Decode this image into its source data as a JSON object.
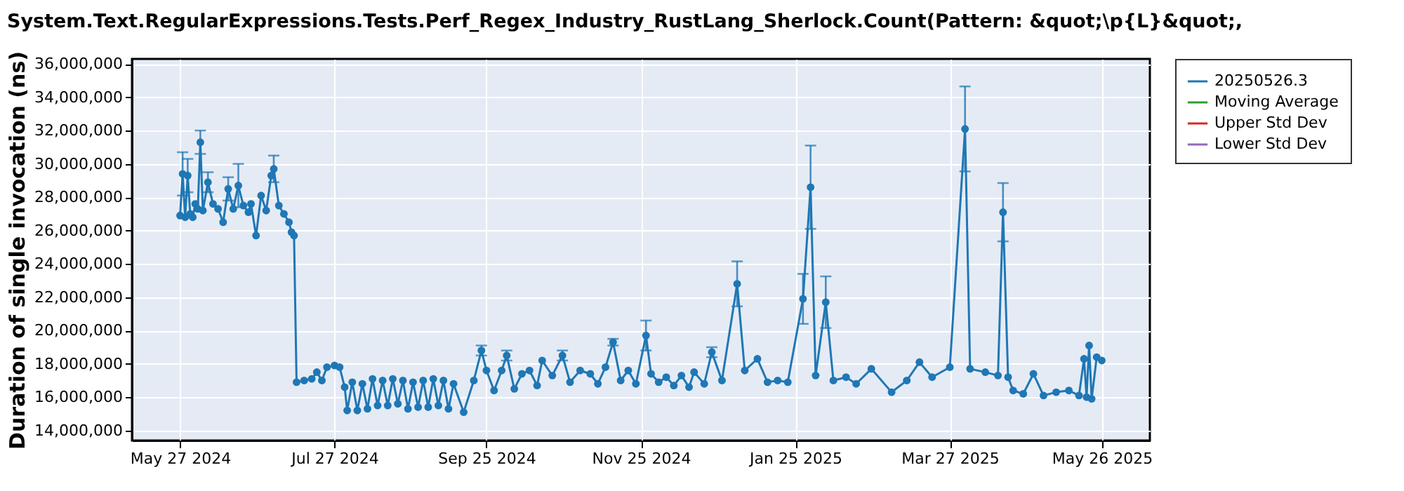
{
  "chart_data": {
    "type": "line",
    "title": "System.Text.RegularExpressions.Tests.Perf_Regex_Industry_RustLang_Sherlock.Count(Pattern: &quot;\\p{L}&quot;,",
    "ylabel": "Duration of single invocation (ns)",
    "xlim": [
      "2024-05-08",
      "2025-06-14"
    ],
    "ylim": [
      13400000,
      36300000
    ],
    "xticks": [
      {
        "value": "2024-05-27",
        "label": "May 27 2024"
      },
      {
        "value": "2024-07-27",
        "label": "Jul 27 2024"
      },
      {
        "value": "2024-09-25",
        "label": "Sep 25 2024"
      },
      {
        "value": "2024-11-25",
        "label": "Nov 25 2024"
      },
      {
        "value": "2025-01-25",
        "label": "Jan 25 2025"
      },
      {
        "value": "2025-03-27",
        "label": "Mar 27 2025"
      },
      {
        "value": "2025-05-26",
        "label": "May 26 2025"
      }
    ],
    "yticks": [
      {
        "value": 14000000,
        "label": "14,000,000"
      },
      {
        "value": 16000000,
        "label": "16,000,000"
      },
      {
        "value": 18000000,
        "label": "18,000,000"
      },
      {
        "value": 20000000,
        "label": "20,000,000"
      },
      {
        "value": 22000000,
        "label": "22,000,000"
      },
      {
        "value": 24000000,
        "label": "24,000,000"
      },
      {
        "value": 26000000,
        "label": "26,000,000"
      },
      {
        "value": 28000000,
        "label": "28,000,000"
      },
      {
        "value": 30000000,
        "label": "30,000,000"
      },
      {
        "value": 32000000,
        "label": "32,000,000"
      },
      {
        "value": 34000000,
        "label": "34,000,000"
      },
      {
        "value": 36000000,
        "label": "36,000,000"
      }
    ],
    "grid": true,
    "legend": "right",
    "marker": "circle",
    "line_style": "solid",
    "x": [
      "2024-05-27",
      "2024-05-28",
      "2024-05-29",
      "2024-05-30",
      "2024-05-31",
      "2024-06-01",
      "2024-06-02",
      "2024-06-03",
      "2024-06-04",
      "2024-06-05",
      "2024-06-07",
      "2024-06-09",
      "2024-06-11",
      "2024-06-13",
      "2024-06-15",
      "2024-06-17",
      "2024-06-19",
      "2024-06-21",
      "2024-06-23",
      "2024-06-24",
      "2024-06-26",
      "2024-06-28",
      "2024-06-30",
      "2024-07-02",
      "2024-07-03",
      "2024-07-05",
      "2024-07-07",
      "2024-07-09",
      "2024-07-10",
      "2024-07-11",
      "2024-07-12",
      "2024-07-15",
      "2024-07-18",
      "2024-07-20",
      "2024-07-22",
      "2024-07-24",
      "2024-07-27",
      "2024-07-29",
      "2024-07-31",
      "2024-08-01",
      "2024-08-03",
      "2024-08-05",
      "2024-08-07",
      "2024-08-09",
      "2024-08-11",
      "2024-08-13",
      "2024-08-15",
      "2024-08-17",
      "2024-08-19",
      "2024-08-21",
      "2024-08-23",
      "2024-08-25",
      "2024-08-27",
      "2024-08-29",
      "2024-08-31",
      "2024-09-02",
      "2024-09-04",
      "2024-09-06",
      "2024-09-08",
      "2024-09-10",
      "2024-09-12",
      "2024-09-16",
      "2024-09-20",
      "2024-09-23",
      "2024-09-25",
      "2024-09-28",
      "2024-10-01",
      "2024-10-03",
      "2024-10-06",
      "2024-10-09",
      "2024-10-12",
      "2024-10-15",
      "2024-10-17",
      "2024-10-21",
      "2024-10-25",
      "2024-10-28",
      "2024-11-01",
      "2024-11-05",
      "2024-11-08",
      "2024-11-11",
      "2024-11-14",
      "2024-11-17",
      "2024-11-20",
      "2024-11-23",
      "2024-11-27",
      "2024-11-29",
      "2024-12-02",
      "2024-12-05",
      "2024-12-08",
      "2024-12-11",
      "2024-12-14",
      "2024-12-16",
      "2024-12-20",
      "2024-12-23",
      "2024-12-27",
      "2025-01-02",
      "2025-01-05",
      "2025-01-10",
      "2025-01-14",
      "2025-01-18",
      "2025-01-22",
      "2025-01-28",
      "2025-01-31",
      "2025-02-02",
      "2025-02-06",
      "2025-02-09",
      "2025-02-14",
      "2025-02-18",
      "2025-02-24",
      "2025-03-04",
      "2025-03-10",
      "2025-03-15",
      "2025-03-20",
      "2025-03-27",
      "2025-04-02",
      "2025-04-04",
      "2025-04-10",
      "2025-04-15",
      "2025-04-17",
      "2025-04-19",
      "2025-04-21",
      "2025-04-25",
      "2025-04-29",
      "2025-05-03",
      "2025-05-08",
      "2025-05-13",
      "2025-05-17",
      "2025-05-19",
      "2025-05-20",
      "2025-05-21",
      "2025-05-22",
      "2025-05-24",
      "2025-05-26"
    ],
    "series": [
      {
        "name": "20250526.3",
        "color": "#1f77b4",
        "values": [
          26900000,
          29400000,
          26800000,
          29300000,
          27000000,
          26800000,
          27600000,
          27300000,
          31300000,
          27200000,
          28900000,
          27600000,
          27300000,
          26500000,
          28500000,
          27300000,
          28700000,
          27500000,
          27100000,
          27600000,
          25700000,
          28100000,
          27200000,
          29300000,
          29700000,
          27500000,
          27000000,
          26500000,
          25900000,
          25700000,
          16900000,
          17000000,
          17100000,
          17500000,
          17000000,
          17800000,
          17900000,
          17800000,
          16600000,
          15200000,
          16900000,
          15200000,
          16800000,
          15300000,
          17100000,
          15500000,
          17000000,
          15500000,
          17100000,
          15600000,
          17000000,
          15300000,
          16900000,
          15400000,
          17000000,
          15400000,
          17100000,
          15500000,
          17000000,
          15300000,
          16800000,
          15100000,
          17000000,
          18800000,
          17600000,
          16400000,
          17600000,
          18500000,
          16500000,
          17400000,
          17600000,
          16700000,
          18200000,
          17300000,
          18500000,
          16900000,
          17600000,
          17400000,
          16800000,
          17800000,
          19300000,
          17000000,
          17600000,
          16800000,
          19700000,
          17400000,
          16900000,
          17200000,
          16700000,
          17300000,
          16600000,
          17500000,
          16800000,
          18700000,
          17000000,
          22800000,
          17600000,
          18300000,
          16900000,
          17000000,
          16900000,
          21900000,
          28600000,
          17300000,
          21700000,
          17000000,
          17200000,
          16800000,
          17700000,
          16300000,
          17000000,
          18100000,
          17200000,
          17800000,
          32100000,
          17700000,
          17500000,
          17300000,
          27100000,
          17200000,
          16400000,
          16200000,
          17400000,
          16100000,
          16300000,
          16400000,
          16100000,
          18300000,
          16000000,
          19100000,
          15900000,
          18400000,
          18200000
        ],
        "errors": [
          null,
          1300000,
          null,
          1000000,
          null,
          null,
          null,
          null,
          700000,
          null,
          600000,
          null,
          null,
          null,
          700000,
          null,
          1300000,
          null,
          null,
          null,
          null,
          null,
          null,
          null,
          800000,
          null,
          null,
          null,
          null,
          null,
          null,
          null,
          null,
          null,
          null,
          null,
          null,
          null,
          null,
          null,
          null,
          null,
          null,
          null,
          null,
          null,
          null,
          null,
          null,
          null,
          null,
          null,
          null,
          null,
          null,
          null,
          null,
          null,
          null,
          null,
          null,
          null,
          null,
          300000,
          null,
          null,
          null,
          300000,
          null,
          null,
          null,
          null,
          null,
          null,
          300000,
          null,
          null,
          null,
          null,
          null,
          200000,
          null,
          null,
          null,
          900000,
          null,
          null,
          null,
          null,
          null,
          null,
          null,
          null,
          300000,
          null,
          1350000,
          null,
          null,
          null,
          null,
          null,
          1500000,
          2500000,
          null,
          1550000,
          null,
          null,
          null,
          null,
          null,
          null,
          null,
          null,
          null,
          2550000,
          null,
          null,
          null,
          1750000,
          null,
          null,
          null,
          null,
          null,
          null,
          null,
          null,
          null,
          null,
          null,
          null,
          null,
          null
        ]
      },
      {
        "name": "Moving Average",
        "color": "#2ca02c",
        "values": [
          null,
          null,
          null,
          null,
          null,
          null,
          null,
          null,
          null,
          null,
          null,
          null,
          null,
          null,
          null,
          null,
          null,
          null,
          null,
          null,
          null,
          null,
          null,
          null,
          null,
          null,
          null,
          null,
          null,
          null,
          null,
          null,
          null,
          null,
          null,
          null,
          null,
          null,
          null,
          null,
          null,
          null,
          null,
          null,
          null,
          null,
          null,
          null,
          null,
          null,
          null,
          null,
          null,
          null,
          null,
          null,
          null,
          null,
          null,
          null,
          null,
          null,
          null,
          null,
          null,
          null,
          null,
          null,
          null,
          null,
          null,
          null,
          null,
          null,
          null,
          null,
          null,
          null,
          null,
          null,
          null,
          null,
          null,
          null,
          null,
          null,
          null,
          null,
          null,
          null,
          null,
          null,
          null,
          null,
          null,
          null,
          null,
          null,
          null,
          null,
          null,
          null,
          null,
          null,
          null,
          null,
          null,
          null,
          null,
          null,
          null,
          null,
          null,
          null,
          null,
          null,
          null,
          null,
          null,
          null,
          null,
          null,
          null,
          null,
          null,
          null,
          null,
          null,
          null,
          null,
          null,
          null,
          null
        ]
      },
      {
        "name": "Upper Std Dev",
        "color": "#d62728",
        "values": [
          null,
          null,
          null,
          null,
          null,
          null,
          null,
          null,
          null,
          null,
          null,
          null,
          null,
          null,
          null,
          null,
          null,
          null,
          null,
          null,
          null,
          null,
          null,
          null,
          null,
          null,
          null,
          null,
          null,
          null,
          null,
          null,
          null,
          null,
          null,
          null,
          null,
          null,
          null,
          null,
          null,
          null,
          null,
          null,
          null,
          null,
          null,
          null,
          null,
          null,
          null,
          null,
          null,
          null,
          null,
          null,
          null,
          null,
          null,
          null,
          null,
          null,
          null,
          null,
          null,
          null,
          null,
          null,
          null,
          null,
          null,
          null,
          null,
          null,
          null,
          null,
          null,
          null,
          null,
          null,
          null,
          null,
          null,
          null,
          null,
          null,
          null,
          null,
          null,
          null,
          null,
          null,
          null,
          null,
          null,
          null,
          null,
          null,
          null,
          null,
          null,
          null,
          null,
          null,
          null,
          null,
          null,
          null,
          null,
          null,
          null,
          null,
          null,
          null,
          null,
          null,
          null,
          null,
          null,
          null,
          null,
          null,
          null,
          null,
          null,
          null,
          null,
          null,
          null,
          null,
          null,
          null,
          null
        ]
      },
      {
        "name": "Lower Std Dev",
        "color": "#9467bd",
        "values": [
          null,
          null,
          null,
          null,
          null,
          null,
          null,
          null,
          null,
          null,
          null,
          null,
          null,
          null,
          null,
          null,
          null,
          null,
          null,
          null,
          null,
          null,
          null,
          null,
          null,
          null,
          null,
          null,
          null,
          null,
          null,
          null,
          null,
          null,
          null,
          null,
          null,
          null,
          null,
          null,
          null,
          null,
          null,
          null,
          null,
          null,
          null,
          null,
          null,
          null,
          null,
          null,
          null,
          null,
          null,
          null,
          null,
          null,
          null,
          null,
          null,
          null,
          null,
          null,
          null,
          null,
          null,
          null,
          null,
          null,
          null,
          null,
          null,
          null,
          null,
          null,
          null,
          null,
          null,
          null,
          null,
          null,
          null,
          null,
          null,
          null,
          null,
          null,
          null,
          null,
          null,
          null,
          null,
          null,
          null,
          null,
          null,
          null,
          null,
          null,
          null,
          null,
          null,
          null,
          null,
          null,
          null,
          null,
          null,
          null,
          null,
          null,
          null,
          null,
          null,
          null,
          null,
          null,
          null,
          null,
          null,
          null,
          null,
          null,
          null,
          null,
          null,
          null,
          null,
          null,
          null,
          null,
          null
        ]
      }
    ]
  }
}
